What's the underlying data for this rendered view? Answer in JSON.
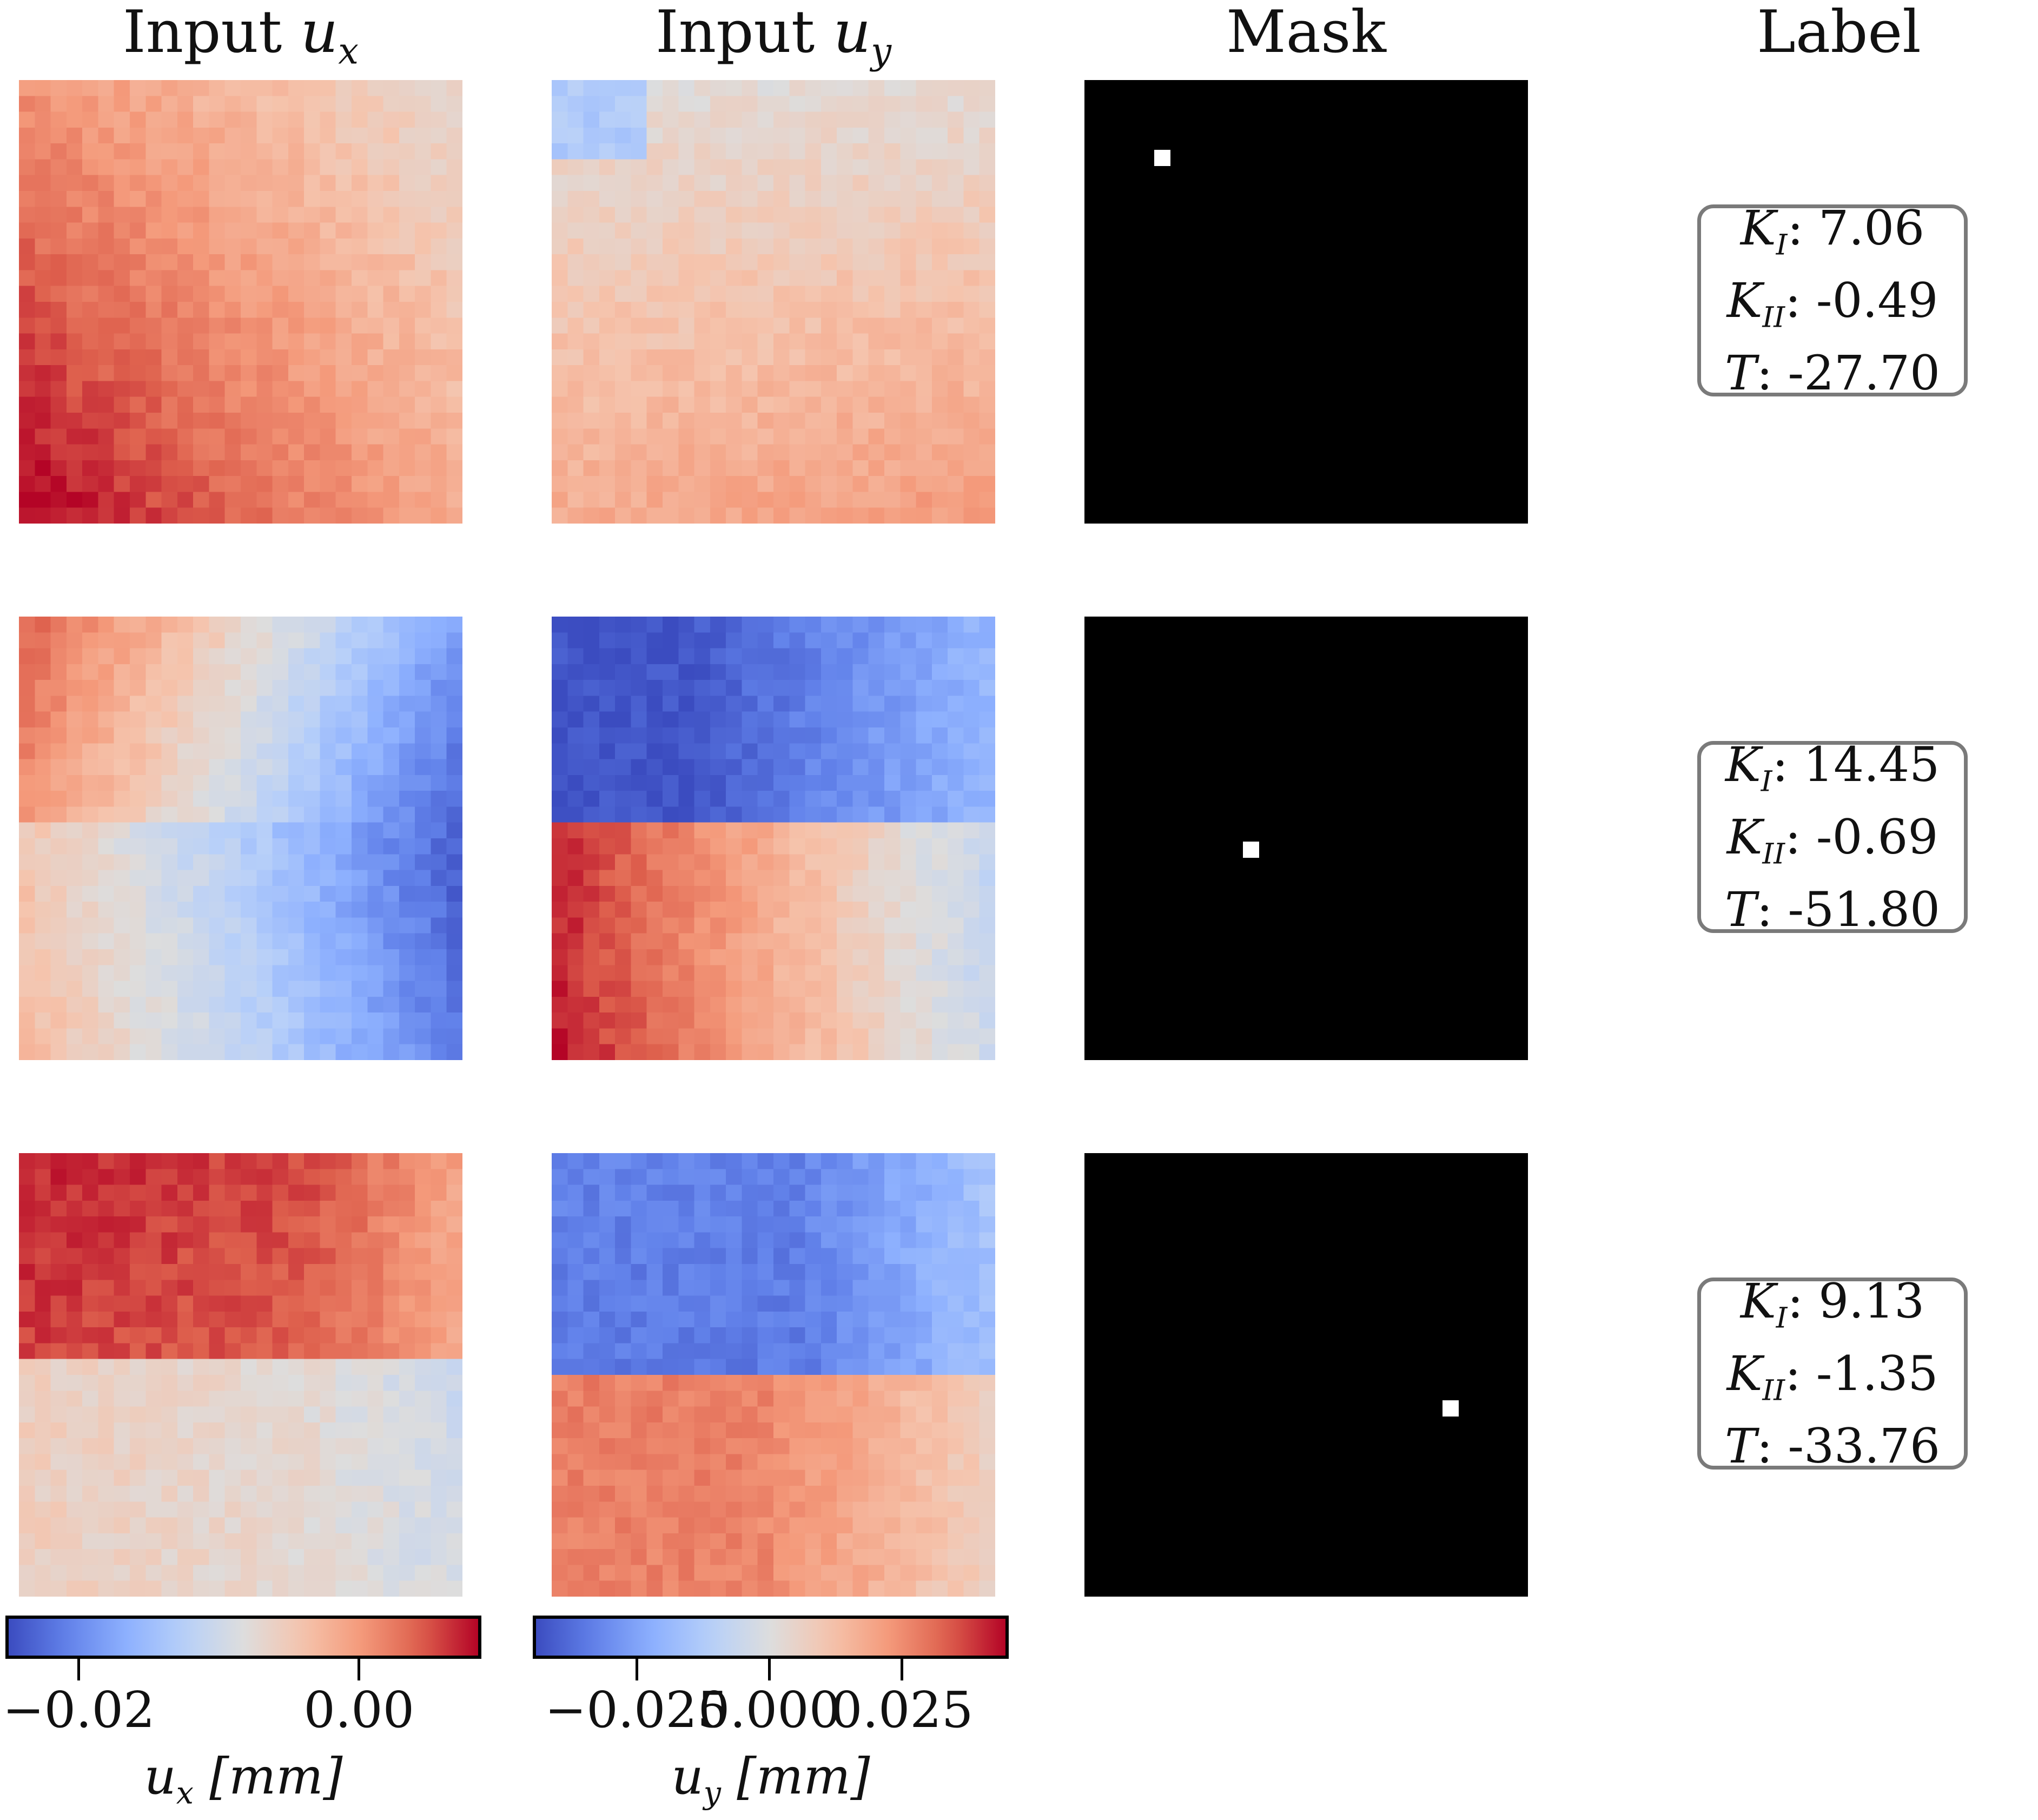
{
  "columns": [
    {
      "key": "ux",
      "prefix": "Input ",
      "var": "u",
      "sub": "x"
    },
    {
      "key": "uy",
      "prefix": "Input ",
      "var": "u",
      "sub": "y"
    },
    {
      "key": "mask",
      "text": "Mask"
    },
    {
      "key": "label",
      "text": "Label"
    }
  ],
  "samples": [
    {
      "ux_desc": "mostly positive, strongest at lower left",
      "uy_desc": "small positive field, slightly negative corner at top left",
      "mask_point": {
        "col": 3,
        "row": 3,
        "grid": 20
      },
      "labels": {
        "KI": "7.06",
        "KII": "-0.49",
        "T": "-27.70"
      }
    },
    {
      "ux_desc": "crack at mid height, positive on left, negative right",
      "uy_desc": "negative upper left, positive lower left",
      "mask_point": {
        "col": 7,
        "row": 10,
        "grid": 20
      },
      "labels": {
        "KI": "14.45",
        "KII": "-0.69",
        "T": "-51.80"
      }
    },
    {
      "ux_desc": "crack near mid height, strong positive top, negative right",
      "uy_desc": "negative upper half, positive lower half",
      "mask_point": {
        "col": 16,
        "row": 11,
        "grid": 20
      },
      "labels": {
        "KI": "9.13",
        "KII": "-1.35",
        "T": "-33.76"
      }
    }
  ],
  "colorbars": [
    {
      "key": "ux",
      "label_var": "u",
      "label_sub": "x",
      "label_unit": "[mm]",
      "range": [
        -0.025,
        0.0085
      ],
      "ticks": [
        {
          "value": -0.02,
          "text": "−0.02"
        },
        {
          "value": 0.0,
          "text": "0.00"
        }
      ]
    },
    {
      "key": "uy",
      "label_var": "u",
      "label_sub": "y",
      "label_unit": "[mm]",
      "range": [
        -0.044,
        0.0445
      ],
      "ticks": [
        {
          "value": -0.025,
          "text": "−0.025"
        },
        {
          "value": 0.0,
          "text": "0.000"
        },
        {
          "value": 0.025,
          "text": "0.025"
        }
      ]
    }
  ],
  "colormap": "coolwarm",
  "label_names": {
    "KI_sym": "K",
    "KI_sub": "I",
    "KII_sym": "K",
    "KII_sub": "II",
    "T_sym": "T"
  }
}
